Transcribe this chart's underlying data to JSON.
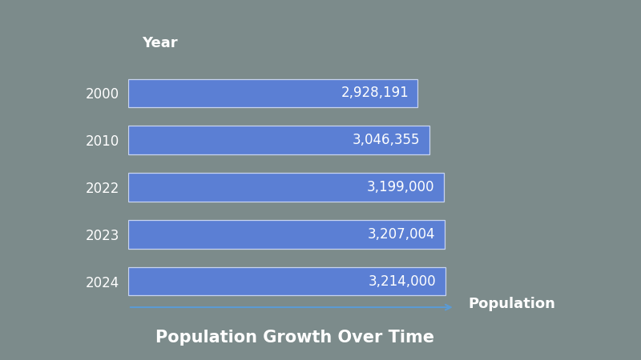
{
  "years": [
    "2000",
    "2010",
    "2022",
    "2023",
    "2024"
  ],
  "populations": [
    2928191,
    3046355,
    3199000,
    3207004,
    3214000
  ],
  "labels": [
    "2,928,191",
    "3,046,355",
    "3,199,000",
    "3,207,004",
    "3,214,000"
  ],
  "bar_color": "#5b7fd4",
  "bar_edge_color": "#c8d4f0",
  "background_color": "#7c8b8b",
  "title": "Population Growth Over Time",
  "text_color": "#ffffff",
  "xlabel": "Population",
  "ylabel": "Year",
  "axis_color": "#5b9bd5",
  "title_fontsize": 15,
  "label_fontsize": 12,
  "year_fontsize": 12,
  "axis_label_fontsize": 13
}
